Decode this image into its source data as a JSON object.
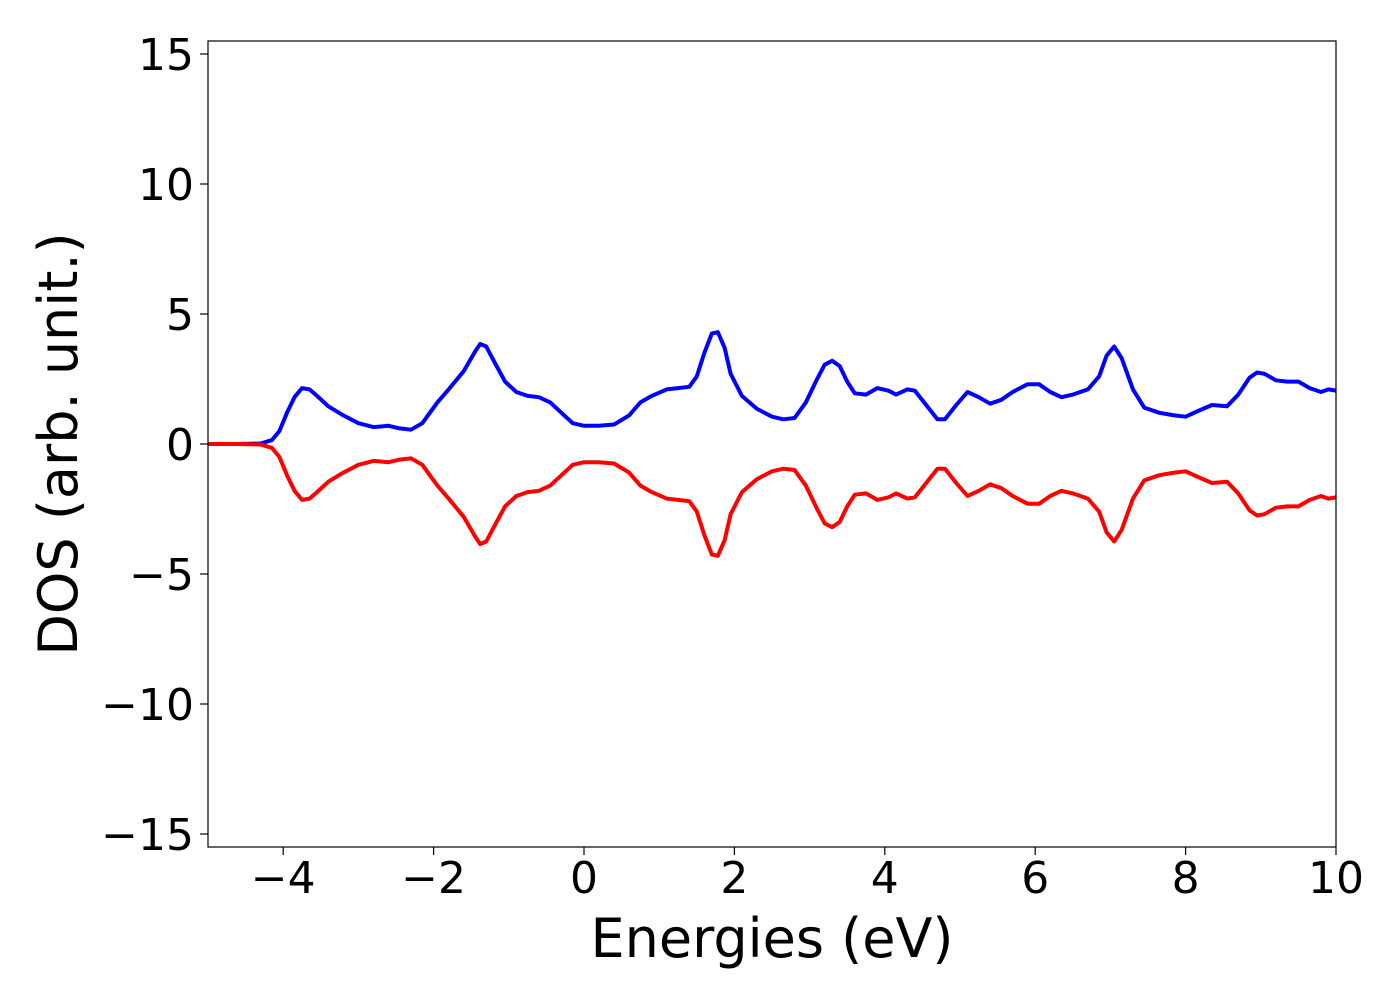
{
  "chart_data": {
    "type": "line",
    "title": "",
    "xlabel": "Energies (eV)",
    "ylabel": "DOS (arb. unit.)",
    "xlim": [
      -5,
      10
    ],
    "ylim": [
      -15.5,
      15.5
    ],
    "x_ticks": [
      -4,
      -2,
      0,
      2,
      4,
      6,
      8,
      10
    ],
    "x_tick_labels": [
      "−4",
      "−2",
      "0",
      "2",
      "4",
      "6",
      "8",
      "10"
    ],
    "y_ticks": [
      -15,
      -10,
      -5,
      0,
      5,
      10,
      15
    ],
    "y_tick_labels": [
      "−15",
      "−10",
      "−5",
      "0",
      "5",
      "10",
      "15"
    ],
    "grid": false,
    "legend": "none",
    "series": [
      {
        "color": "#0000ff",
        "points": [
          [
            -5.0,
            0.0
          ],
          [
            -4.6,
            0.0
          ],
          [
            -4.3,
            0.02
          ],
          [
            -4.15,
            0.15
          ],
          [
            -4.05,
            0.5
          ],
          [
            -3.95,
            1.2
          ],
          [
            -3.85,
            1.8
          ],
          [
            -3.75,
            2.15
          ],
          [
            -3.65,
            2.1
          ],
          [
            -3.55,
            1.85
          ],
          [
            -3.4,
            1.45
          ],
          [
            -3.2,
            1.1
          ],
          [
            -3.0,
            0.8
          ],
          [
            -2.8,
            0.65
          ],
          [
            -2.6,
            0.7
          ],
          [
            -2.45,
            0.6
          ],
          [
            -2.3,
            0.55
          ],
          [
            -2.15,
            0.8
          ],
          [
            -1.95,
            1.6
          ],
          [
            -1.8,
            2.1
          ],
          [
            -1.6,
            2.8
          ],
          [
            -1.45,
            3.55
          ],
          [
            -1.38,
            3.85
          ],
          [
            -1.3,
            3.75
          ],
          [
            -1.2,
            3.2
          ],
          [
            -1.05,
            2.4
          ],
          [
            -0.9,
            2.0
          ],
          [
            -0.75,
            1.85
          ],
          [
            -0.6,
            1.8
          ],
          [
            -0.45,
            1.6
          ],
          [
            -0.3,
            1.2
          ],
          [
            -0.15,
            0.8
          ],
          [
            0.0,
            0.7
          ],
          [
            0.2,
            0.7
          ],
          [
            0.4,
            0.75
          ],
          [
            0.6,
            1.1
          ],
          [
            0.75,
            1.6
          ],
          [
            0.9,
            1.85
          ],
          [
            1.1,
            2.1
          ],
          [
            1.25,
            2.15
          ],
          [
            1.4,
            2.2
          ],
          [
            1.5,
            2.6
          ],
          [
            1.6,
            3.5
          ],
          [
            1.7,
            4.25
          ],
          [
            1.78,
            4.3
          ],
          [
            1.87,
            3.7
          ],
          [
            1.95,
            2.7
          ],
          [
            2.1,
            1.85
          ],
          [
            2.3,
            1.35
          ],
          [
            2.5,
            1.05
          ],
          [
            2.65,
            0.95
          ],
          [
            2.8,
            1.0
          ],
          [
            2.95,
            1.6
          ],
          [
            3.1,
            2.5
          ],
          [
            3.2,
            3.05
          ],
          [
            3.3,
            3.2
          ],
          [
            3.4,
            3.0
          ],
          [
            3.5,
            2.4
          ],
          [
            3.6,
            1.95
          ],
          [
            3.75,
            1.9
          ],
          [
            3.9,
            2.15
          ],
          [
            4.05,
            2.05
          ],
          [
            4.15,
            1.9
          ],
          [
            4.3,
            2.1
          ],
          [
            4.4,
            2.05
          ],
          [
            4.55,
            1.5
          ],
          [
            4.7,
            0.95
          ],
          [
            4.8,
            0.95
          ],
          [
            4.95,
            1.5
          ],
          [
            5.1,
            2.0
          ],
          [
            5.25,
            1.8
          ],
          [
            5.4,
            1.55
          ],
          [
            5.55,
            1.7
          ],
          [
            5.7,
            2.0
          ],
          [
            5.9,
            2.3
          ],
          [
            6.05,
            2.3
          ],
          [
            6.2,
            2.0
          ],
          [
            6.35,
            1.8
          ],
          [
            6.5,
            1.9
          ],
          [
            6.7,
            2.1
          ],
          [
            6.85,
            2.6
          ],
          [
            6.95,
            3.4
          ],
          [
            7.05,
            3.75
          ],
          [
            7.15,
            3.3
          ],
          [
            7.3,
            2.1
          ],
          [
            7.45,
            1.4
          ],
          [
            7.65,
            1.2
          ],
          [
            7.85,
            1.1
          ],
          [
            8.0,
            1.05
          ],
          [
            8.15,
            1.25
          ],
          [
            8.35,
            1.5
          ],
          [
            8.55,
            1.45
          ],
          [
            8.7,
            1.9
          ],
          [
            8.85,
            2.55
          ],
          [
            8.95,
            2.75
          ],
          [
            9.05,
            2.7
          ],
          [
            9.2,
            2.45
          ],
          [
            9.35,
            2.4
          ],
          [
            9.5,
            2.4
          ],
          [
            9.65,
            2.15
          ],
          [
            9.8,
            2.0
          ],
          [
            9.9,
            2.1
          ],
          [
            10.0,
            2.05
          ]
        ]
      },
      {
        "color": "#ff0000",
        "points": [
          [
            -5.0,
            0.0
          ],
          [
            -4.6,
            0.0
          ],
          [
            -4.3,
            -0.02
          ],
          [
            -4.15,
            -0.15
          ],
          [
            -4.05,
            -0.5
          ],
          [
            -3.95,
            -1.2
          ],
          [
            -3.85,
            -1.8
          ],
          [
            -3.75,
            -2.15
          ],
          [
            -3.65,
            -2.1
          ],
          [
            -3.55,
            -1.85
          ],
          [
            -3.4,
            -1.45
          ],
          [
            -3.2,
            -1.1
          ],
          [
            -3.0,
            -0.8
          ],
          [
            -2.8,
            -0.65
          ],
          [
            -2.6,
            -0.7
          ],
          [
            -2.45,
            -0.6
          ],
          [
            -2.3,
            -0.55
          ],
          [
            -2.15,
            -0.8
          ],
          [
            -1.95,
            -1.6
          ],
          [
            -1.8,
            -2.1
          ],
          [
            -1.6,
            -2.8
          ],
          [
            -1.45,
            -3.55
          ],
          [
            -1.38,
            -3.85
          ],
          [
            -1.3,
            -3.75
          ],
          [
            -1.2,
            -3.2
          ],
          [
            -1.05,
            -2.4
          ],
          [
            -0.9,
            -2.0
          ],
          [
            -0.75,
            -1.85
          ],
          [
            -0.6,
            -1.8
          ],
          [
            -0.45,
            -1.6
          ],
          [
            -0.3,
            -1.2
          ],
          [
            -0.15,
            -0.8
          ],
          [
            0.0,
            -0.7
          ],
          [
            0.2,
            -0.7
          ],
          [
            0.4,
            -0.75
          ],
          [
            0.6,
            -1.1
          ],
          [
            0.75,
            -1.6
          ],
          [
            0.9,
            -1.85
          ],
          [
            1.1,
            -2.1
          ],
          [
            1.25,
            -2.15
          ],
          [
            1.4,
            -2.2
          ],
          [
            1.5,
            -2.6
          ],
          [
            1.6,
            -3.5
          ],
          [
            1.7,
            -4.25
          ],
          [
            1.78,
            -4.3
          ],
          [
            1.87,
            -3.7
          ],
          [
            1.95,
            -2.7
          ],
          [
            2.1,
            -1.85
          ],
          [
            2.3,
            -1.35
          ],
          [
            2.5,
            -1.05
          ],
          [
            2.65,
            -0.95
          ],
          [
            2.8,
            -1.0
          ],
          [
            2.95,
            -1.6
          ],
          [
            3.1,
            -2.5
          ],
          [
            3.2,
            -3.05
          ],
          [
            3.3,
            -3.2
          ],
          [
            3.4,
            -3.0
          ],
          [
            3.5,
            -2.4
          ],
          [
            3.6,
            -1.95
          ],
          [
            3.75,
            -1.9
          ],
          [
            3.9,
            -2.15
          ],
          [
            4.05,
            -2.05
          ],
          [
            4.15,
            -1.9
          ],
          [
            4.3,
            -2.1
          ],
          [
            4.4,
            -2.05
          ],
          [
            4.55,
            -1.5
          ],
          [
            4.7,
            -0.95
          ],
          [
            4.8,
            -0.95
          ],
          [
            4.95,
            -1.5
          ],
          [
            5.1,
            -2.0
          ],
          [
            5.25,
            -1.8
          ],
          [
            5.4,
            -1.55
          ],
          [
            5.55,
            -1.7
          ],
          [
            5.7,
            -2.0
          ],
          [
            5.9,
            -2.3
          ],
          [
            6.05,
            -2.3
          ],
          [
            6.2,
            -2.0
          ],
          [
            6.35,
            -1.8
          ],
          [
            6.5,
            -1.9
          ],
          [
            6.7,
            -2.1
          ],
          [
            6.85,
            -2.6
          ],
          [
            6.95,
            -3.4
          ],
          [
            7.05,
            -3.75
          ],
          [
            7.15,
            -3.3
          ],
          [
            7.3,
            -2.1
          ],
          [
            7.45,
            -1.4
          ],
          [
            7.65,
            -1.2
          ],
          [
            7.85,
            -1.1
          ],
          [
            8.0,
            -1.05
          ],
          [
            8.15,
            -1.25
          ],
          [
            8.35,
            -1.5
          ],
          [
            8.55,
            -1.45
          ],
          [
            8.7,
            -1.9
          ],
          [
            8.85,
            -2.55
          ],
          [
            8.95,
            -2.75
          ],
          [
            9.05,
            -2.7
          ],
          [
            9.2,
            -2.45
          ],
          [
            9.35,
            -2.4
          ],
          [
            9.5,
            -2.4
          ],
          [
            9.65,
            -2.15
          ],
          [
            9.8,
            -2.0
          ],
          [
            9.9,
            -2.1
          ],
          [
            10.0,
            -2.05
          ]
        ]
      }
    ]
  }
}
